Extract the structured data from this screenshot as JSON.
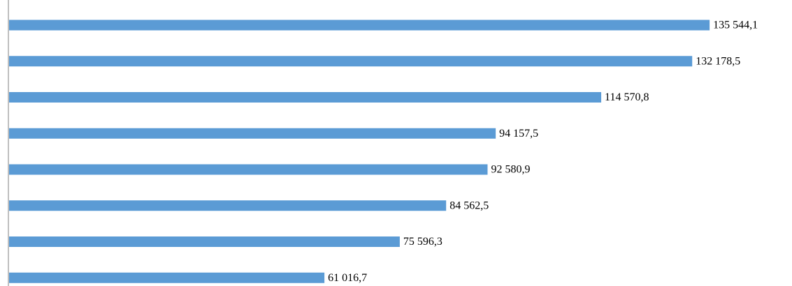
{
  "chart_data": {
    "type": "hbar",
    "values": [
      135544.1,
      132178.5,
      114570.8,
      94157.5,
      92580.9,
      84562.5,
      75596.3,
      61016.7
    ],
    "value_labels": [
      "135 544,1",
      "132 178,5",
      "114 570,8",
      "94 157,5",
      "92 580,9",
      "84 562,5",
      "75 596,3",
      "61 016,7"
    ],
    "color": "#5b9bd5",
    "xlim": [
      0,
      150000
    ]
  }
}
